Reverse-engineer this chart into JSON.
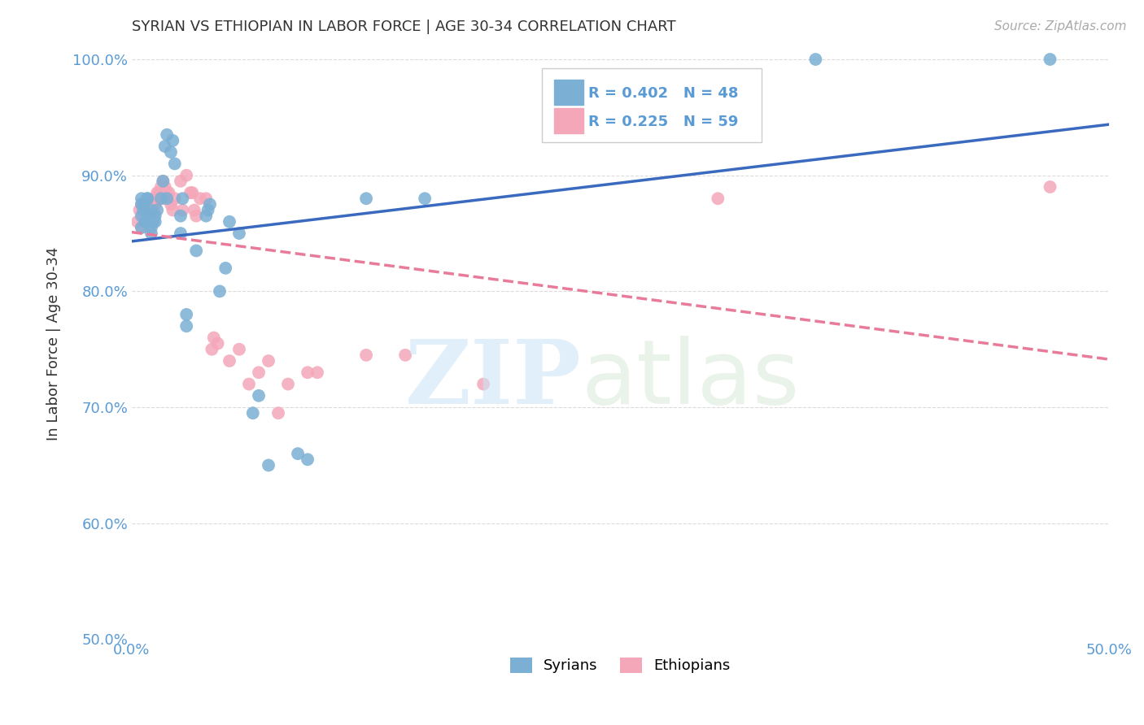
{
  "title": "SYRIAN VS ETHIOPIAN IN LABOR FORCE | AGE 30-34 CORRELATION CHART",
  "source": "Source: ZipAtlas.com",
  "ylabel": "In Labor Force | Age 30-34",
  "xlabel": "",
  "xlim": [
    0.0,
    0.5
  ],
  "ylim": [
    0.5,
    1.01
  ],
  "xtick_vals": [
    0.0,
    0.05,
    0.1,
    0.15,
    0.2,
    0.25,
    0.3,
    0.35,
    0.4,
    0.45,
    0.5
  ],
  "xtick_labels": [
    "0.0%",
    "",
    "",
    "",
    "",
    "",
    "",
    "",
    "",
    "",
    "50.0%"
  ],
  "ytick_vals": [
    0.5,
    0.6,
    0.7,
    0.8,
    0.9,
    1.0
  ],
  "ytick_labels": [
    "50.0%",
    "60.0%",
    "70.0%",
    "80.0%",
    "90.0%",
    "100.0%"
  ],
  "legend_r_syrian": "R = 0.402",
  "legend_n_syrian": "N = 48",
  "legend_r_ethiopian": "R = 0.225",
  "legend_n_ethiopian": "N = 59",
  "syrian_color": "#7bafd4",
  "ethiopian_color": "#f4a7b9",
  "syrian_line_color": "#3a6abf",
  "ethiopian_line_color": "#e87b9a",
  "background_color": "#ffffff",
  "grid_color": "#cccccc",
  "axis_color": "#5a9bd5",
  "title_color": "#333333",
  "syrian_x": [
    0.005,
    0.005,
    0.005,
    0.005,
    0.006,
    0.006,
    0.007,
    0.007,
    0.008,
    0.008,
    0.009,
    0.01,
    0.01,
    0.01,
    0.011,
    0.012,
    0.012,
    0.013,
    0.015,
    0.016,
    0.017,
    0.018,
    0.018,
    0.02,
    0.021,
    0.022,
    0.025,
    0.025,
    0.026,
    0.028,
    0.028,
    0.033,
    0.038,
    0.039,
    0.04,
    0.045,
    0.048,
    0.05,
    0.055,
    0.062,
    0.065,
    0.07,
    0.085,
    0.09,
    0.12,
    0.15,
    0.35,
    0.47
  ],
  "syrian_y": [
    0.855,
    0.865,
    0.88,
    0.875,
    0.87,
    0.875,
    0.86,
    0.86,
    0.88,
    0.88,
    0.865,
    0.855,
    0.85,
    0.87,
    0.86,
    0.86,
    0.865,
    0.87,
    0.88,
    0.895,
    0.925,
    0.935,
    0.88,
    0.92,
    0.93,
    0.91,
    0.85,
    0.865,
    0.88,
    0.77,
    0.78,
    0.835,
    0.865,
    0.87,
    0.875,
    0.8,
    0.82,
    0.86,
    0.85,
    0.695,
    0.71,
    0.65,
    0.66,
    0.655,
    0.88,
    0.88,
    1.0,
    1.0
  ],
  "ethiopian_x": [
    0.003,
    0.004,
    0.005,
    0.005,
    0.006,
    0.006,
    0.006,
    0.007,
    0.007,
    0.007,
    0.008,
    0.008,
    0.008,
    0.009,
    0.009,
    0.01,
    0.01,
    0.011,
    0.011,
    0.012,
    0.012,
    0.013,
    0.013,
    0.014,
    0.015,
    0.016,
    0.016,
    0.017,
    0.018,
    0.019,
    0.02,
    0.021,
    0.022,
    0.025,
    0.026,
    0.028,
    0.03,
    0.031,
    0.032,
    0.033,
    0.035,
    0.038,
    0.041,
    0.042,
    0.044,
    0.05,
    0.055,
    0.06,
    0.065,
    0.07,
    0.075,
    0.08,
    0.09,
    0.095,
    0.12,
    0.14,
    0.18,
    0.3,
    0.47
  ],
  "ethiopian_y": [
    0.86,
    0.87,
    0.875,
    0.855,
    0.87,
    0.87,
    0.875,
    0.875,
    0.875,
    0.875,
    0.875,
    0.875,
    0.875,
    0.87,
    0.875,
    0.875,
    0.87,
    0.87,
    0.865,
    0.875,
    0.88,
    0.88,
    0.885,
    0.885,
    0.89,
    0.88,
    0.895,
    0.89,
    0.885,
    0.885,
    0.875,
    0.87,
    0.88,
    0.895,
    0.87,
    0.9,
    0.885,
    0.885,
    0.87,
    0.865,
    0.88,
    0.88,
    0.75,
    0.76,
    0.755,
    0.74,
    0.75,
    0.72,
    0.73,
    0.74,
    0.695,
    0.72,
    0.73,
    0.73,
    0.745,
    0.745,
    0.72,
    0.88,
    0.89
  ]
}
